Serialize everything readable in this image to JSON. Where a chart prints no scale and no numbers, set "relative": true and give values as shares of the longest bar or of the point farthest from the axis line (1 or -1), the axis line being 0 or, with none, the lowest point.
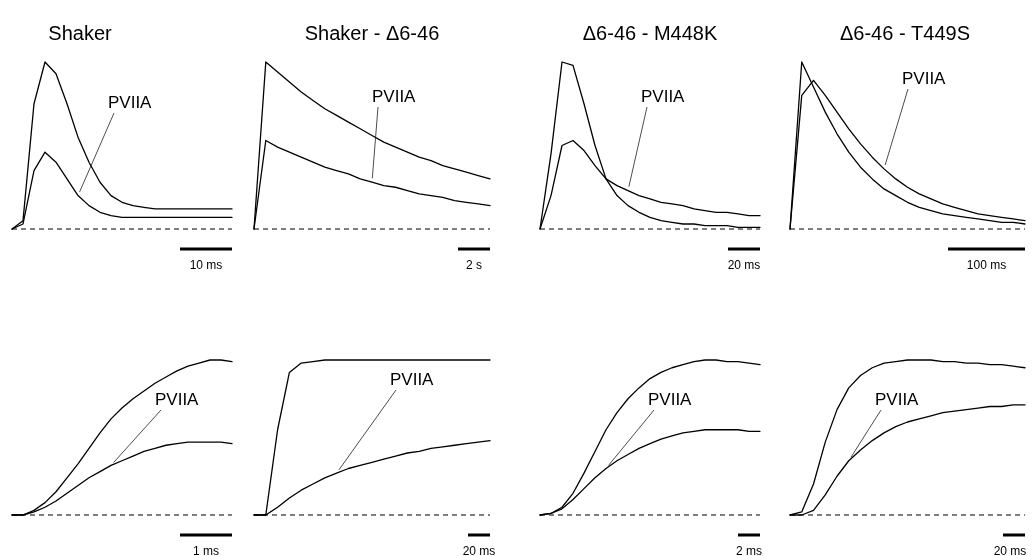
{
  "chart_data": [
    {
      "type": "line",
      "title": "Shaker",
      "relative": true,
      "categories": [
        null,
        null,
        null,
        null,
        null,
        null,
        null,
        null,
        null,
        null,
        null,
        null,
        null,
        null,
        null,
        null,
        null,
        null,
        null,
        null,
        null
      ],
      "series": [
        {
          "color": "#000000",
          "values": [
            0,
            0.05,
            0.75,
            1.0,
            0.93,
            0.75,
            0.55,
            0.4,
            0.28,
            0.2,
            0.16,
            0.14,
            0.13,
            0.12,
            0.12,
            0.12,
            0.12,
            0.12,
            0.12,
            0.12,
            0.12
          ]
        },
        {
          "color": "#000000",
          "values": [
            0,
            0.03,
            0.35,
            0.46,
            0.4,
            0.3,
            0.2,
            0.14,
            0.1,
            0.08,
            0.07,
            0.07,
            0.07,
            0.07,
            0.07,
            0.07,
            0.07,
            0.07,
            0.07,
            0.07,
            0.07
          ]
        }
      ],
      "annotations": [
        "PVIIA",
        "10 ms"
      ]
    },
    {
      "type": "line",
      "title": "Shaker - Δ6-46",
      "relative": true,
      "categories": [
        null,
        null,
        null,
        null,
        null,
        null,
        null,
        null,
        null,
        null,
        null,
        null,
        null,
        null,
        null,
        null,
        null,
        null,
        null,
        null,
        null
      ],
      "series": [
        {
          "color": "#000000",
          "values": [
            0,
            1,
            0.94,
            0.88,
            0.82,
            0.77,
            0.72,
            0.68,
            0.64,
            0.6,
            0.56,
            0.52,
            0.49,
            0.46,
            0.43,
            0.41,
            0.38,
            0.36,
            0.34,
            0.32,
            0.3
          ]
        },
        {
          "color": "#000000",
          "values": [
            0,
            0.53,
            0.49,
            0.46,
            0.43,
            0.4,
            0.37,
            0.35,
            0.33,
            0.3,
            0.28,
            0.26,
            0.25,
            0.23,
            0.21,
            0.2,
            0.19,
            0.17,
            0.16,
            0.15,
            0.14
          ]
        }
      ],
      "annotations": [
        "PVIIA",
        "2 s"
      ]
    },
    {
      "type": "line",
      "title": "Δ6-46 - M448K",
      "relative": true,
      "categories": [
        null,
        null,
        null,
        null,
        null,
        null,
        null,
        null,
        null,
        null,
        null,
        null,
        null,
        null,
        null,
        null,
        null,
        null,
        null,
        null,
        null
      ],
      "series": [
        {
          "color": "#000000",
          "values": [
            0,
            0.45,
            1.0,
            0.98,
            0.75,
            0.5,
            0.3,
            0.2,
            0.14,
            0.1,
            0.07,
            0.05,
            0.04,
            0.03,
            0.03,
            0.02,
            0.02,
            0.02,
            0.01,
            0.01,
            0.01
          ]
        },
        {
          "color": "#000000",
          "values": [
            0,
            0.2,
            0.5,
            0.53,
            0.47,
            0.38,
            0.3,
            0.26,
            0.23,
            0.2,
            0.18,
            0.16,
            0.15,
            0.14,
            0.12,
            0.11,
            0.1,
            0.1,
            0.09,
            0.08,
            0.08
          ]
        }
      ],
      "annotations": [
        "PVIIA",
        "20 ms"
      ]
    },
    {
      "type": "line",
      "title": "Δ6-46 - T449S",
      "relative": true,
      "categories": [
        null,
        null,
        null,
        null,
        null,
        null,
        null,
        null,
        null,
        null,
        null,
        null,
        null,
        null,
        null,
        null,
        null,
        null,
        null,
        null,
        null
      ],
      "series": [
        {
          "color": "#000000",
          "values": [
            0,
            1.0,
            0.85,
            0.7,
            0.57,
            0.46,
            0.37,
            0.3,
            0.24,
            0.2,
            0.16,
            0.13,
            0.11,
            0.09,
            0.08,
            0.07,
            0.06,
            0.05,
            0.04,
            0.04,
            0.03
          ]
        },
        {
          "color": "#000000",
          "values": [
            0,
            0.8,
            0.89,
            0.8,
            0.7,
            0.6,
            0.51,
            0.43,
            0.36,
            0.3,
            0.25,
            0.21,
            0.18,
            0.15,
            0.13,
            0.11,
            0.09,
            0.08,
            0.07,
            0.06,
            0.05
          ]
        }
      ],
      "annotations": [
        "PVIIA",
        "100 ms"
      ]
    },
    {
      "type": "line",
      "relative": true,
      "categories": [
        null,
        null,
        null,
        null,
        null,
        null,
        null,
        null,
        null,
        null,
        null,
        null,
        null,
        null,
        null,
        null,
        null,
        null,
        null,
        null,
        null
      ],
      "series": [
        {
          "color": "#000000",
          "values": [
            0,
            0,
            0.03,
            0.08,
            0.15,
            0.24,
            0.33,
            0.43,
            0.53,
            0.62,
            0.69,
            0.75,
            0.8,
            0.85,
            0.89,
            0.93,
            0.96,
            0.98,
            1.0,
            1.0,
            0.99
          ]
        },
        {
          "color": "#000000",
          "values": [
            0,
            0,
            0.02,
            0.05,
            0.09,
            0.14,
            0.19,
            0.24,
            0.28,
            0.32,
            0.35,
            0.38,
            0.41,
            0.43,
            0.45,
            0.46,
            0.47,
            0.47,
            0.47,
            0.47,
            0.46
          ]
        }
      ],
      "annotations": [
        "PVIIA",
        "1 ms"
      ]
    },
    {
      "type": "line",
      "relative": true,
      "categories": [
        null,
        null,
        null,
        null,
        null,
        null,
        null,
        null,
        null,
        null,
        null,
        null,
        null,
        null,
        null,
        null,
        null,
        null,
        null,
        null,
        null
      ],
      "series": [
        {
          "color": "#000000",
          "values": [
            0,
            0,
            0.55,
            0.92,
            0.98,
            0.99,
            1,
            1,
            1,
            1,
            1,
            1,
            1,
            1,
            1,
            1,
            1,
            1,
            1,
            1,
            1
          ]
        },
        {
          "color": "#000000",
          "values": [
            0,
            0,
            0.05,
            0.11,
            0.16,
            0.2,
            0.24,
            0.27,
            0.3,
            0.32,
            0.34,
            0.36,
            0.38,
            0.4,
            0.41,
            0.43,
            0.44,
            0.45,
            0.46,
            0.47,
            0.48
          ]
        }
      ],
      "annotations": [
        "PVIIA",
        "20 ms"
      ]
    },
    {
      "type": "line",
      "relative": true,
      "categories": [
        null,
        null,
        null,
        null,
        null,
        null,
        null,
        null,
        null,
        null,
        null,
        null,
        null,
        null,
        null,
        null,
        null,
        null,
        null,
        null,
        null
      ],
      "series": [
        {
          "color": "#000000",
          "values": [
            0,
            0.01,
            0.05,
            0.14,
            0.27,
            0.41,
            0.55,
            0.66,
            0.75,
            0.82,
            0.88,
            0.92,
            0.95,
            0.97,
            0.99,
            1,
            1,
            0.99,
            0.99,
            0.98,
            0.97
          ]
        },
        {
          "color": "#000000",
          "values": [
            0,
            0.01,
            0.04,
            0.1,
            0.17,
            0.24,
            0.3,
            0.35,
            0.39,
            0.43,
            0.46,
            0.49,
            0.51,
            0.53,
            0.54,
            0.55,
            0.55,
            0.55,
            0.55,
            0.54,
            0.54
          ]
        }
      ],
      "annotations": [
        "PVIIA",
        "2 ms"
      ]
    },
    {
      "type": "line",
      "relative": true,
      "categories": [
        null,
        null,
        null,
        null,
        null,
        null,
        null,
        null,
        null,
        null,
        null,
        null,
        null,
        null,
        null,
        null,
        null,
        null,
        null,
        null,
        null
      ],
      "series": [
        {
          "color": "#000000",
          "values": [
            0,
            0.02,
            0.2,
            0.47,
            0.68,
            0.82,
            0.9,
            0.95,
            0.98,
            0.99,
            1,
            1,
            1,
            0.99,
            0.99,
            0.98,
            0.98,
            0.97,
            0.97,
            0.96,
            0.95
          ]
        },
        {
          "color": "#000000",
          "values": [
            0,
            0,
            0.03,
            0.13,
            0.25,
            0.35,
            0.42,
            0.48,
            0.53,
            0.57,
            0.6,
            0.62,
            0.64,
            0.66,
            0.67,
            0.68,
            0.69,
            0.7,
            0.7,
            0.71,
            0.71
          ]
        }
      ],
      "annotations": [
        "PVIIA",
        "20 ms"
      ]
    }
  ]
}
